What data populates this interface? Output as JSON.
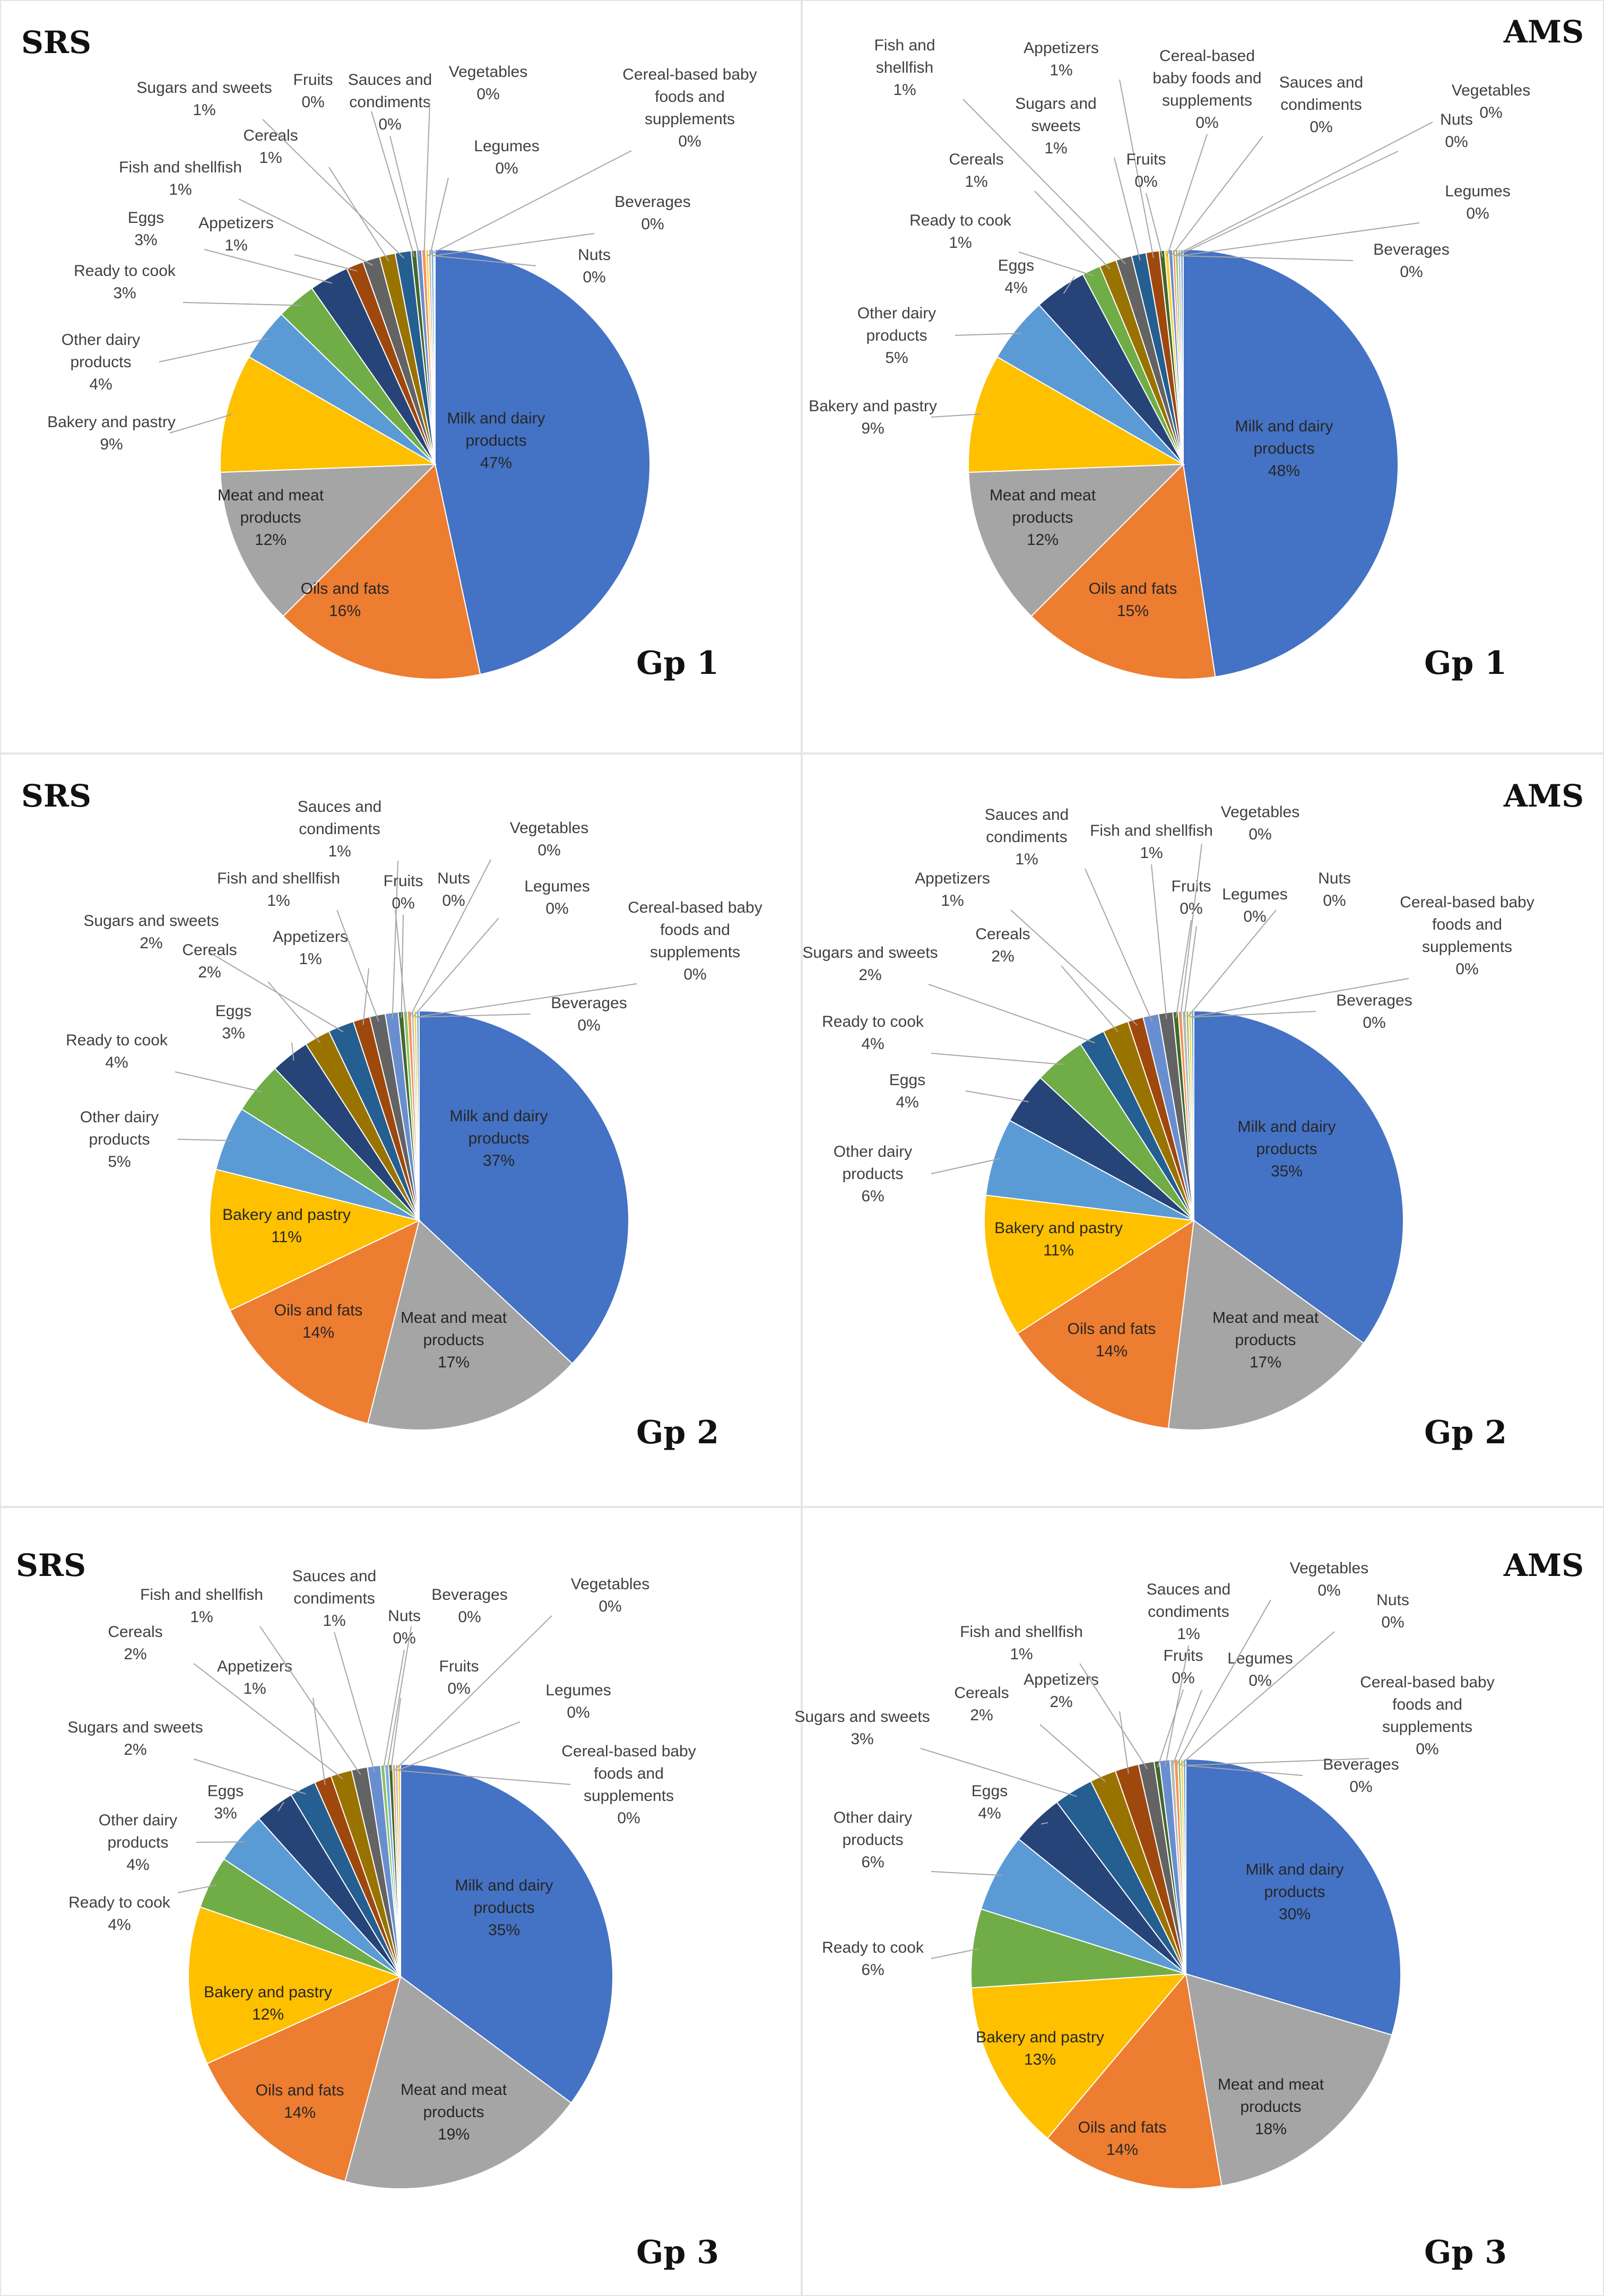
{
  "colors": {
    "Milk and dairy products": "#4472C4",
    "Oils and fats": "#ED7D31",
    "Meat and meat products": "#A5A5A5",
    "Bakery and pastry": "#FFC000",
    "Other dairy products": "#5B9BD5",
    "Ready to cook": "#70AD47",
    "Eggs": "#264478",
    "Appetizers": "#9E480E",
    "Fish and shellfish": "#636363",
    "Cereals": "#997300",
    "Sugars and sweets": "#255E91",
    "Fruits": "#43682B",
    "Sauces and condiments": "#698ED0",
    "Vegetables": "#F1975A",
    "Legumes": "#B7B7B7",
    "Cereal-based baby foods and supplements": "#FFCD33",
    "Beverages": "#7CAFDD",
    "Nuts": "#8CC168"
  },
  "chart_data": [
    {
      "type": "pie",
      "method": "SRS",
      "group": "Gp 1",
      "slices": [
        {
          "name": "Milk and dairy products",
          "label": "Milk and dairy\nproducts",
          "pct": "47%",
          "value": 47
        },
        {
          "name": "Oils and fats",
          "label": "Oils and fats",
          "pct": "16%",
          "value": 16
        },
        {
          "name": "Meat and meat products",
          "label": "Meat and meat\nproducts",
          "pct": "12%",
          "value": 12
        },
        {
          "name": "Bakery and pastry",
          "label": "Bakery and pastry",
          "pct": "9%",
          "value": 9
        },
        {
          "name": "Other dairy products",
          "label": "Other dairy\nproducts",
          "pct": "4%",
          "value": 4
        },
        {
          "name": "Ready to cook",
          "label": "Ready to cook",
          "pct": "3%",
          "value": 3
        },
        {
          "name": "Eggs",
          "label": "Eggs",
          "pct": "3%",
          "value": 3
        },
        {
          "name": "Appetizers",
          "label": "Appetizers",
          "pct": "1%",
          "value": 1.3
        },
        {
          "name": "Fish and shellfish",
          "label": "Fish and shellfish",
          "pct": "1%",
          "value": 1.3
        },
        {
          "name": "Cereals",
          "label": "Cereals",
          "pct": "1%",
          "value": 1.2
        },
        {
          "name": "Sugars and sweets",
          "label": "Sugars and sweets",
          "pct": "1%",
          "value": 1.2
        },
        {
          "name": "Fruits",
          "label": "Fruits",
          "pct": "0%",
          "value": 0.4
        },
        {
          "name": "Sauces and condiments",
          "label": "Sauces and\ncondiments",
          "pct": "0%",
          "value": 0.4
        },
        {
          "name": "Vegetables",
          "label": "Vegetables",
          "pct": "0%",
          "value": 0.3
        },
        {
          "name": "Cereal-based baby foods and supplements",
          "label": "Cereal-based baby\nfoods and\nsupplements",
          "pct": "0%",
          "value": 0.2
        },
        {
          "name": "Legumes",
          "label": "Legumes",
          "pct": "0%",
          "value": 0.2
        },
        {
          "name": "Beverages",
          "label": "Beverages",
          "pct": "0%",
          "value": 0.2
        },
        {
          "name": "Nuts",
          "label": "Nuts",
          "pct": "0%",
          "value": 0.1
        }
      ]
    },
    {
      "type": "pie",
      "method": "AMS",
      "group": "Gp 1",
      "slices": [
        {
          "name": "Milk and dairy products",
          "label": "Milk and dairy\nproducts",
          "pct": "48%",
          "value": 48
        },
        {
          "name": "Oils and fats",
          "label": "Oils and fats",
          "pct": "15%",
          "value": 15
        },
        {
          "name": "Meat and meat products",
          "label": "Meat and meat\nproducts",
          "pct": "12%",
          "value": 12
        },
        {
          "name": "Bakery and pastry",
          "label": "Bakery and pastry",
          "pct": "9%",
          "value": 9
        },
        {
          "name": "Other dairy products",
          "label": "Other dairy\nproducts",
          "pct": "5%",
          "value": 5
        },
        {
          "name": "Eggs",
          "label": "Eggs",
          "pct": "4%",
          "value": 4
        },
        {
          "name": "Ready to cook",
          "label": "Ready to cook",
          "pct": "1%",
          "value": 1.4
        },
        {
          "name": "Cereals",
          "label": "Cereals",
          "pct": "1%",
          "value": 1.3
        },
        {
          "name": "Fish and shellfish",
          "label": "Fish and\nshellfish",
          "pct": "1%",
          "value": 1.2
        },
        {
          "name": "Sugars and sweets",
          "label": "Sugars and\nsweets",
          "pct": "1%",
          "value": 1.1
        },
        {
          "name": "Appetizers",
          "label": "Appetizers",
          "pct": "1%",
          "value": 1
        },
        {
          "name": "Fruits",
          "label": "Fruits",
          "pct": "0%",
          "value": 0.4
        },
        {
          "name": "Cereal-based baby foods and supplements",
          "label": "Cereal-based\nbaby foods and\nsupplements",
          "pct": "0%",
          "value": 0.3
        },
        {
          "name": "Sauces and condiments",
          "label": "Sauces and\ncondiments",
          "pct": "0%",
          "value": 0.3
        },
        {
          "name": "Vegetables",
          "label": "Vegetables",
          "pct": "0%",
          "value": 0.2
        },
        {
          "name": "Nuts",
          "label": "Nuts",
          "pct": "0%",
          "value": 0.2
        },
        {
          "name": "Legumes",
          "label": "Legumes",
          "pct": "0%",
          "value": 0.2
        },
        {
          "name": "Beverages",
          "label": "Beverages",
          "pct": "0%",
          "value": 0.2
        }
      ]
    },
    {
      "type": "pie",
      "method": "SRS",
      "group": "Gp 2",
      "slices": [
        {
          "name": "Milk and dairy products",
          "label": "Milk and dairy\nproducts",
          "pct": "37%",
          "value": 37
        },
        {
          "name": "Meat and meat products",
          "label": "Meat and meat\nproducts",
          "pct": "17%",
          "value": 17
        },
        {
          "name": "Oils and fats",
          "label": "Oils and fats",
          "pct": "14%",
          "value": 14
        },
        {
          "name": "Bakery and pastry",
          "label": "Bakery and pastry",
          "pct": "11%",
          "value": 11
        },
        {
          "name": "Other dairy products",
          "label": "Other dairy\nproducts",
          "pct": "5%",
          "value": 5
        },
        {
          "name": "Ready to cook",
          "label": "Ready to cook",
          "pct": "4%",
          "value": 4
        },
        {
          "name": "Eggs",
          "label": "Eggs",
          "pct": "3%",
          "value": 3
        },
        {
          "name": "Cereals",
          "label": "Cereals",
          "pct": "2%",
          "value": 2
        },
        {
          "name": "Sugars and sweets",
          "label": "Sugars and sweets",
          "pct": "2%",
          "value": 2
        },
        {
          "name": "Appetizers",
          "label": "Appetizers",
          "pct": "1%",
          "value": 1.3
        },
        {
          "name": "Fish and shellfish",
          "label": "Fish and shellfish",
          "pct": "1%",
          "value": 1.2
        },
        {
          "name": "Sauces and condiments",
          "label": "Sauces and\ncondiments",
          "pct": "1%",
          "value": 1
        },
        {
          "name": "Fruits",
          "label": "Fruits",
          "pct": "0%",
          "value": 0.4
        },
        {
          "name": "Nuts",
          "label": "Nuts",
          "pct": "0%",
          "value": 0.3
        },
        {
          "name": "Vegetables",
          "label": "Vegetables",
          "pct": "0%",
          "value": 0.3
        },
        {
          "name": "Legumes",
          "label": "Legumes",
          "pct": "0%",
          "value": 0.2
        },
        {
          "name": "Cereal-based baby foods and supplements",
          "label": "Cereal-based baby\nfoods and\nsupplements",
          "pct": "0%",
          "value": 0.2
        },
        {
          "name": "Beverages",
          "label": "Beverages",
          "pct": "0%",
          "value": 0.2
        }
      ]
    },
    {
      "type": "pie",
      "method": "AMS",
      "group": "Gp 2",
      "slices": [
        {
          "name": "Milk and dairy products",
          "label": "Milk and dairy\nproducts",
          "pct": "35%",
          "value": 35
        },
        {
          "name": "Meat and meat products",
          "label": "Meat and meat\nproducts",
          "pct": "17%",
          "value": 17
        },
        {
          "name": "Oils and fats",
          "label": "Oils and fats",
          "pct": "14%",
          "value": 14
        },
        {
          "name": "Bakery and pastry",
          "label": "Bakery and pastry",
          "pct": "11%",
          "value": 11
        },
        {
          "name": "Other dairy products",
          "label": "Other dairy\nproducts",
          "pct": "6%",
          "value": 6
        },
        {
          "name": "Eggs",
          "label": "Eggs",
          "pct": "4%",
          "value": 4
        },
        {
          "name": "Ready to cook",
          "label": "Ready to cook",
          "pct": "4%",
          "value": 4
        },
        {
          "name": "Sugars and sweets",
          "label": "Sugars and sweets",
          "pct": "2%",
          "value": 2
        },
        {
          "name": "Cereals",
          "label": "Cereals",
          "pct": "2%",
          "value": 2
        },
        {
          "name": "Appetizers",
          "label": "Appetizers",
          "pct": "1%",
          "value": 1.2
        },
        {
          "name": "Sauces and condiments",
          "label": "Sauces and\ncondiments",
          "pct": "1%",
          "value": 1.2
        },
        {
          "name": "Fish and shellfish",
          "label": "Fish and shellfish",
          "pct": "1%",
          "value": 1.1
        },
        {
          "name": "Fruits",
          "label": "Fruits",
          "pct": "0%",
          "value": 0.4
        },
        {
          "name": "Vegetables",
          "label": "Vegetables",
          "pct": "0%",
          "value": 0.3
        },
        {
          "name": "Legumes",
          "label": "Legumes",
          "pct": "0%",
          "value": 0.3
        },
        {
          "name": "Nuts",
          "label": "Nuts",
          "pct": "0%",
          "value": 0.2
        },
        {
          "name": "Cereal-based baby foods and supplements",
          "label": "Cereal-based baby\nfoods and\nsupplements",
          "pct": "0%",
          "value": 0.2
        },
        {
          "name": "Beverages",
          "label": "Beverages",
          "pct": "0%",
          "value": 0.2
        }
      ]
    },
    {
      "type": "pie",
      "method": "SRS",
      "group": "Gp 3",
      "slices": [
        {
          "name": "Milk and dairy products",
          "label": "Milk and dairy\nproducts",
          "pct": "35%",
          "value": 35
        },
        {
          "name": "Meat and meat products",
          "label": "Meat and meat\nproducts",
          "pct": "19%",
          "value": 19
        },
        {
          "name": "Oils and fats",
          "label": "Oils and fats",
          "pct": "14%",
          "value": 14
        },
        {
          "name": "Bakery and pastry",
          "label": "Bakery and pastry",
          "pct": "12%",
          "value": 12
        },
        {
          "name": "Ready to cook",
          "label": "Ready to cook",
          "pct": "4%",
          "value": 4
        },
        {
          "name": "Other dairy products",
          "label": "Other dairy\nproducts",
          "pct": "4%",
          "value": 4
        },
        {
          "name": "Eggs",
          "label": "Eggs",
          "pct": "3%",
          "value": 3
        },
        {
          "name": "Sugars and sweets",
          "label": "Sugars and sweets",
          "pct": "2%",
          "value": 2
        },
        {
          "name": "Appetizers",
          "label": "Appetizers",
          "pct": "1%",
          "value": 1.3
        },
        {
          "name": "Cereals",
          "label": "Cereals",
          "pct": "2%",
          "value": 1.6
        },
        {
          "name": "Fish and shellfish",
          "label": "Fish and shellfish",
          "pct": "1%",
          "value": 1.2
        },
        {
          "name": "Sauces and condiments",
          "label": "Sauces and\ncondiments",
          "pct": "1%",
          "value": 1
        },
        {
          "name": "Nuts",
          "label": "Nuts",
          "pct": "0%",
          "value": 0.3
        },
        {
          "name": "Beverages",
          "label": "Beverages",
          "pct": "0%",
          "value": 0.3
        },
        {
          "name": "Fruits",
          "label": "Fruits",
          "pct": "0%",
          "value": 0.3
        },
        {
          "name": "Vegetables",
          "label": "Vegetables",
          "pct": "0%",
          "value": 0.2
        },
        {
          "name": "Legumes",
          "label": "Legumes",
          "pct": "0%",
          "value": 0.2
        },
        {
          "name": "Cereal-based baby foods and supplements",
          "label": "Cereal-based baby\nfoods and\nsupplements",
          "pct": "0%",
          "value": 0.2
        }
      ]
    },
    {
      "type": "pie",
      "method": "AMS",
      "group": "Gp 3",
      "slices": [
        {
          "name": "Milk and dairy products",
          "label": "Milk and dairy\nproducts",
          "pct": "30%",
          "value": 30
        },
        {
          "name": "Meat and meat products",
          "label": "Meat and meat\nproducts",
          "pct": "18%",
          "value": 18
        },
        {
          "name": "Oils and fats",
          "label": "Oils and fats",
          "pct": "14%",
          "value": 14
        },
        {
          "name": "Bakery and pastry",
          "label": "Bakery and pastry",
          "pct": "13%",
          "value": 13
        },
        {
          "name": "Ready to cook",
          "label": "Ready to cook",
          "pct": "6%",
          "value": 6
        },
        {
          "name": "Other dairy products",
          "label": "Other dairy\nproducts",
          "pct": "6%",
          "value": 6
        },
        {
          "name": "Eggs",
          "label": "Eggs",
          "pct": "4%",
          "value": 4
        },
        {
          "name": "Sugars and sweets",
          "label": "Sugars and sweets",
          "pct": "3%",
          "value": 3
        },
        {
          "name": "Cereals",
          "label": "Cereals",
          "pct": "2%",
          "value": 2
        },
        {
          "name": "Appetizers",
          "label": "Appetizers",
          "pct": "2%",
          "value": 1.8
        },
        {
          "name": "Fish and shellfish",
          "label": "Fish and shellfish",
          "pct": "1%",
          "value": 1.2
        },
        {
          "name": "Fruits",
          "label": "Fruits",
          "pct": "0%",
          "value": 0.4
        },
        {
          "name": "Sauces and condiments",
          "label": "Sauces and\ncondiments",
          "pct": "1%",
          "value": 0.8
        },
        {
          "name": "Legumes",
          "label": "Legumes",
          "pct": "0%",
          "value": 0.3
        },
        {
          "name": "Vegetables",
          "label": "Vegetables",
          "pct": "0%",
          "value": 0.3
        },
        {
          "name": "Nuts",
          "label": "Nuts",
          "pct": "0%",
          "value": 0.2
        },
        {
          "name": "Cereal-based baby foods and supplements",
          "label": "Cereal-based baby\nfoods and\nsupplements",
          "pct": "0%",
          "value": 0.2
        },
        {
          "name": "Beverages",
          "label": "Beverages",
          "pct": "0%",
          "value": 0.2
        }
      ]
    }
  ]
}
